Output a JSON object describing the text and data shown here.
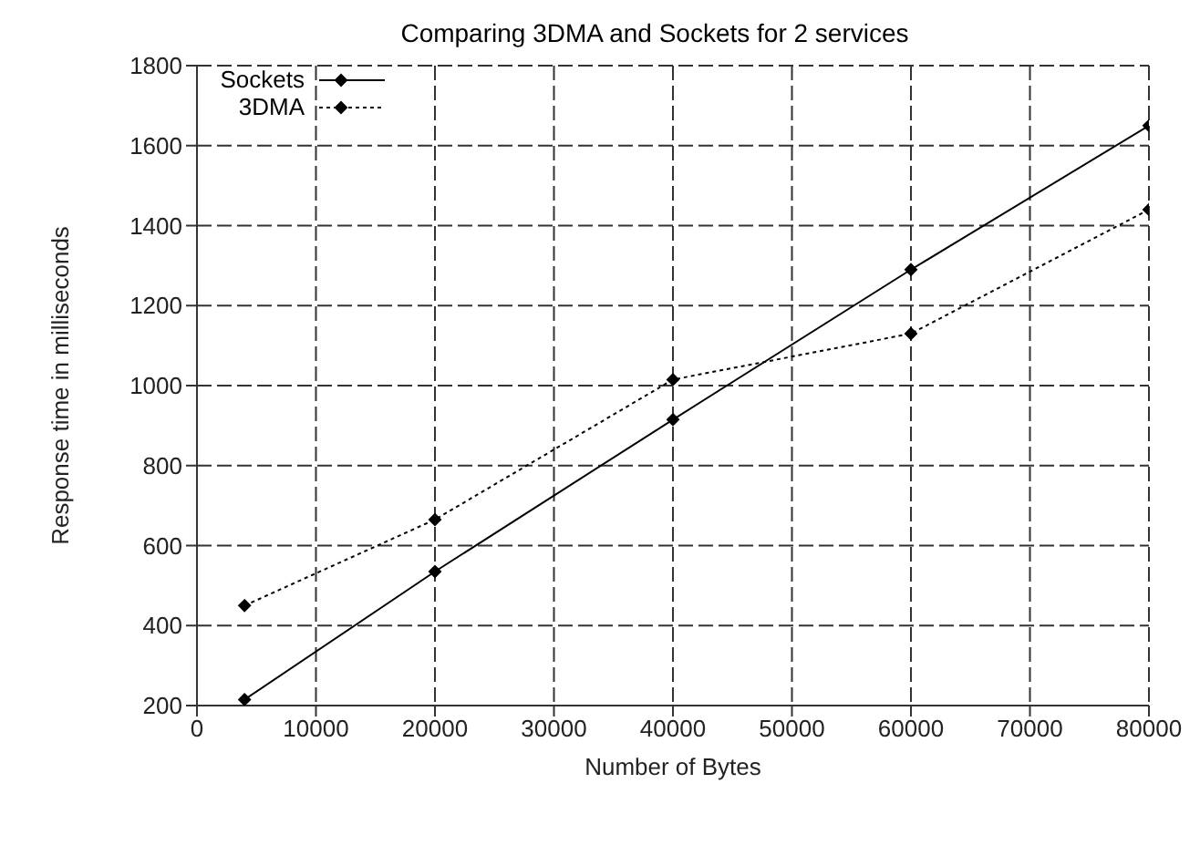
{
  "chart_data": {
    "type": "line",
    "title": "Comparing 3DMA and Sockets for 2 services",
    "xlabel": "Number of Bytes",
    "ylabel": "Response time in milliseconds",
    "x": [
      4000,
      20000,
      40000,
      60000,
      80000
    ],
    "series": [
      {
        "name": "Sockets",
        "color": "#000000",
        "line_style": "solid",
        "values": [
          215,
          535,
          915,
          1290,
          1650
        ]
      },
      {
        "name": "3DMA",
        "color": "#000000",
        "line_style": "dotted",
        "values": [
          450,
          665,
          1015,
          1130,
          1440
        ]
      }
    ],
    "xlim": [
      0,
      80000
    ],
    "xticks": [
      0,
      10000,
      20000,
      30000,
      40000,
      50000,
      60000,
      70000,
      80000
    ],
    "ylim": [
      200,
      1800
    ],
    "yticks": [
      200,
      400,
      600,
      800,
      1000,
      1200,
      1400,
      1600,
      1800
    ],
    "grid": true,
    "legend": "top left",
    "marker": "diamond"
  }
}
